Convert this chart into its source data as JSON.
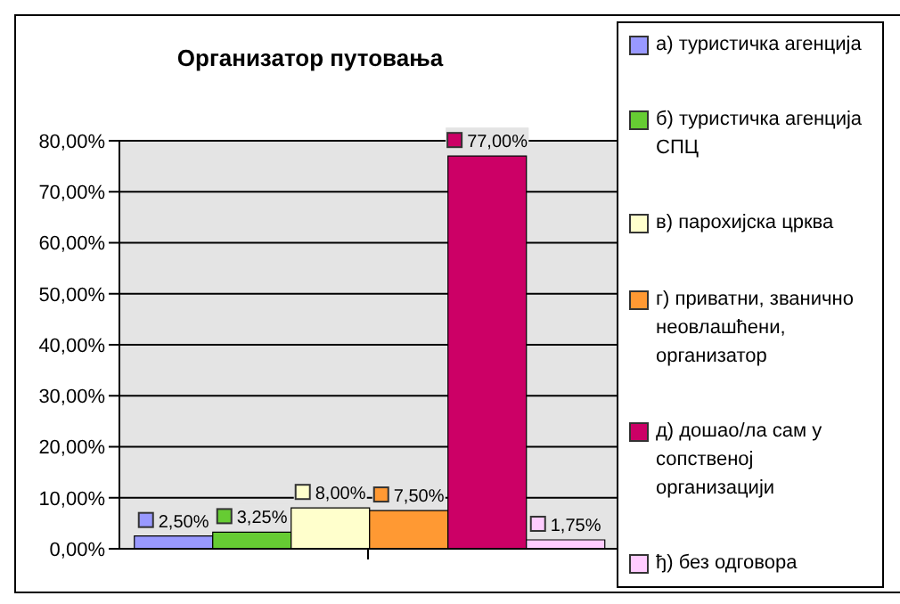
{
  "chart_data": {
    "type": "bar",
    "title": "Организатор путовања",
    "categories": [
      null
    ],
    "series": [
      {
        "name": "а) туристичка агенција",
        "color": "#9999ff",
        "values": [
          2.5
        ],
        "value_labels": [
          "2,50%"
        ]
      },
      {
        "name": "б) туристичка агенција СПЦ",
        "color": "#66cc33",
        "values": [
          3.25
        ],
        "value_labels": [
          "3,25%"
        ]
      },
      {
        "name": "в) парохијска црква",
        "color": "#ffffcc",
        "values": [
          8.0
        ],
        "value_labels": [
          "8,00%"
        ]
      },
      {
        "name": "г) приватни, званично неовлашћени, организатор",
        "color": "#ff9933",
        "values": [
          7.5
        ],
        "value_labels": [
          "7,50%"
        ]
      },
      {
        "name": "д) дошао/ла сам у сопственој организацији",
        "color": "#cc0066",
        "values": [
          77.0
        ],
        "value_labels": [
          "77,00%"
        ]
      },
      {
        "name": "ђ) без одговора",
        "color": "#ffccff",
        "values": [
          1.75
        ],
        "value_labels": [
          "1,75%"
        ]
      }
    ],
    "ylim": [
      0,
      80
    ],
    "yticks": [
      {
        "value": 0,
        "label": "0,00%"
      },
      {
        "value": 10,
        "label": "10,00%"
      },
      {
        "value": 20,
        "label": "20,00%"
      },
      {
        "value": 30,
        "label": "30,00%"
      },
      {
        "value": 40,
        "label": "40,00%"
      },
      {
        "value": 50,
        "label": "50,00%"
      },
      {
        "value": 60,
        "label": "60,00%"
      },
      {
        "value": 70,
        "label": "70,00%"
      },
      {
        "value": 80,
        "label": "80,00%"
      }
    ],
    "grid": "y",
    "legend": "right"
  }
}
